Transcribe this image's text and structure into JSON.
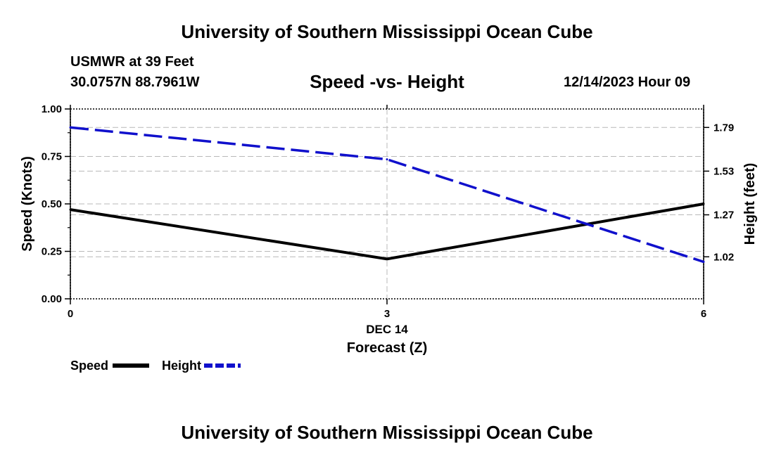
{
  "page": {
    "title_top": "University of Southern Mississippi Ocean Cube",
    "title_bottom": "University of Southern Mississippi Ocean Cube",
    "station_line": "USMWR at 39 Feet",
    "location_line": "30.0757N  88.7961W",
    "datetime_line": "12/14/2023 Hour 09"
  },
  "legend": {
    "speed_label": "Speed",
    "height_label": "Height"
  },
  "colors": {
    "speed": "#000000",
    "height": "#1010cc",
    "grid": "#b8b8b8"
  },
  "chart_data": {
    "type": "line",
    "title": "Speed -vs- Height",
    "xlabel": "Forecast (Z)",
    "x_date_label": "DEC 14",
    "ylabel_left": "Speed (Knots)",
    "ylabel_right": "Height (feet)",
    "x": [
      0,
      3,
      6
    ],
    "xlim": [
      0,
      6
    ],
    "x_ticks": [
      "0",
      "3",
      "6"
    ],
    "ylim_left": [
      0,
      1.0
    ],
    "y_ticks_left": [
      "0.00",
      "0.25",
      "0.50",
      "0.75",
      "1.00"
    ],
    "ylim_right": [
      0.77,
      1.9
    ],
    "y_ticks_right": [
      "1.02",
      "1.27",
      "1.53",
      "1.79"
    ],
    "series": [
      {
        "name": "Speed",
        "axis": "left",
        "style": "solid",
        "values": [
          0.47,
          0.21,
          0.5
        ]
      },
      {
        "name": "Height",
        "axis": "right",
        "style": "dashed",
        "values": [
          1.79,
          1.6,
          0.99
        ]
      }
    ]
  }
}
